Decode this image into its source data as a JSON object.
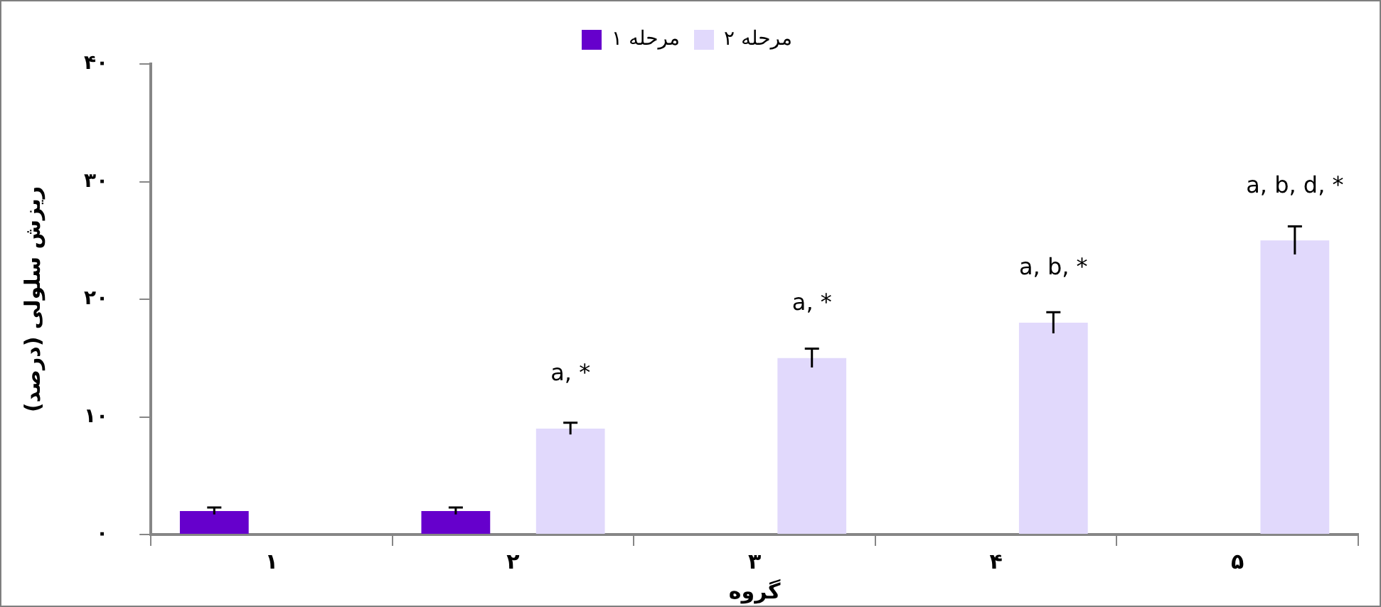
{
  "chart_data": {
    "type": "bar",
    "xlabel": "گروه",
    "ylabel": "ریزش سلولی (درصد)",
    "categories": [
      "۱",
      "۲",
      "۳",
      "۴",
      "۵"
    ],
    "series": [
      {
        "name": "مرحله ۱",
        "color": "#6600cc",
        "values": [
          2,
          2,
          null,
          null,
          null
        ],
        "errors": [
          0.3,
          0.3,
          null,
          null,
          null
        ]
      },
      {
        "name": "مرحله ۲",
        "color": "#e1d9fc",
        "values": [
          null,
          9,
          15,
          18,
          25
        ],
        "errors": [
          null,
          0.5,
          0.8,
          0.9,
          1.2
        ],
        "value_labels": [
          null,
          "a, *",
          "a, *",
          "a, b, *",
          "a, b, d, *"
        ]
      }
    ],
    "ylim": [
      0,
      40
    ],
    "yticks": [
      {
        "value": 0,
        "label": "۰"
      },
      {
        "value": 10,
        "label": "۱۰"
      },
      {
        "value": 20,
        "label": "۲۰"
      },
      {
        "value": 30,
        "label": "۳۰"
      },
      {
        "value": 40,
        "label": "۴۰"
      }
    ],
    "legend": "top",
    "grid": false
  }
}
